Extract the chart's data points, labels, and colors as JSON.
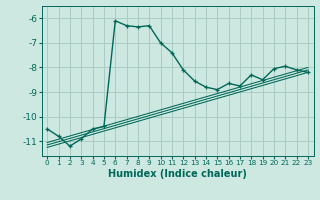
{
  "xlabel": "Humidex (Indice chaleur)",
  "ylabel": "",
  "bg_color": "#cce8e0",
  "grid_color": "#aaccc4",
  "line_color": "#006858",
  "xlim": [
    -0.5,
    23.5
  ],
  "ylim": [
    -11.6,
    -5.5
  ],
  "yticks": [
    -11,
    -10,
    -9,
    -8,
    -7,
    -6
  ],
  "xticks": [
    0,
    1,
    2,
    3,
    4,
    5,
    6,
    7,
    8,
    9,
    10,
    11,
    12,
    13,
    14,
    15,
    16,
    17,
    18,
    19,
    20,
    21,
    22,
    23
  ],
  "series": [
    [
      0,
      -10.5
    ],
    [
      1,
      -10.8
    ],
    [
      2,
      -11.2
    ],
    [
      3,
      -10.9
    ],
    [
      4,
      -10.5
    ],
    [
      5,
      -10.4
    ],
    [
      6,
      -6.1
    ],
    [
      7,
      -6.3
    ],
    [
      8,
      -6.35
    ],
    [
      9,
      -6.3
    ],
    [
      10,
      -7.0
    ],
    [
      11,
      -7.4
    ],
    [
      12,
      -8.1
    ],
    [
      13,
      -8.55
    ],
    [
      14,
      -8.8
    ],
    [
      15,
      -8.9
    ],
    [
      16,
      -8.65
    ],
    [
      17,
      -8.75
    ],
    [
      18,
      -8.3
    ],
    [
      19,
      -8.5
    ],
    [
      20,
      -8.05
    ],
    [
      21,
      -7.95
    ],
    [
      22,
      -8.1
    ],
    [
      23,
      -8.2
    ]
  ],
  "linear_series": [
    [
      [
        0,
        23
      ],
      [
        -11.05,
        -8.0
      ]
    ],
    [
      [
        0,
        23
      ],
      [
        -11.15,
        -8.1
      ]
    ],
    [
      [
        0,
        23
      ],
      [
        -11.25,
        -8.2
      ]
    ]
  ]
}
